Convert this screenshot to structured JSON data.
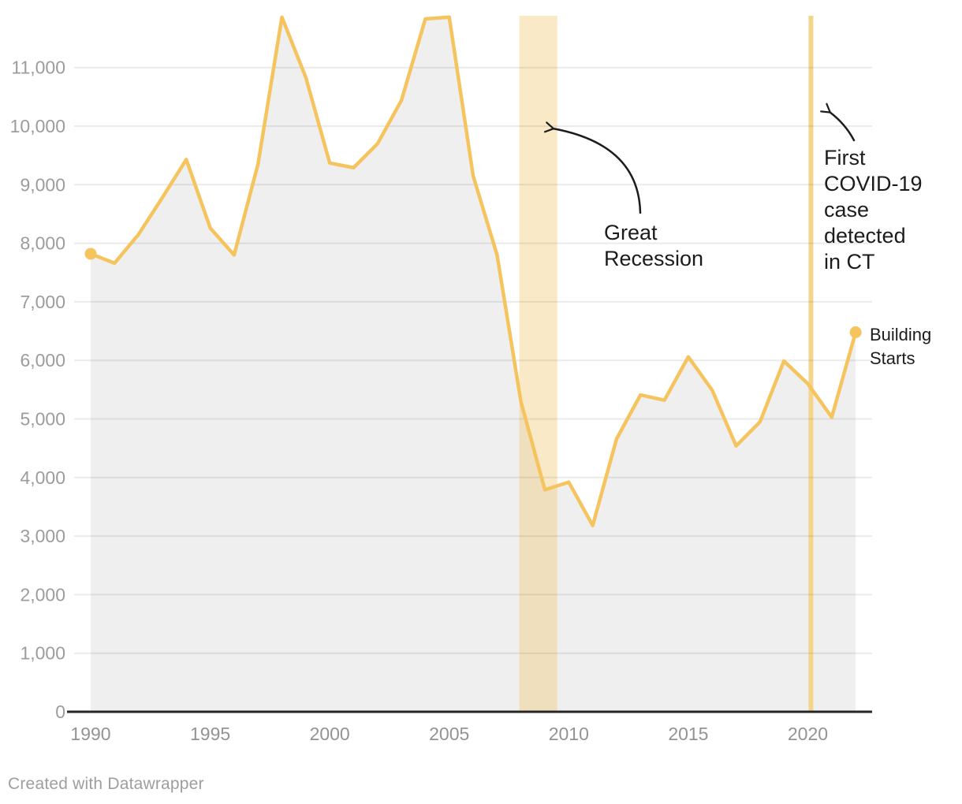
{
  "chart_data": {
    "type": "area",
    "title": "",
    "xlabel": "",
    "ylabel": "",
    "series_name": "Building Starts",
    "x": [
      1990,
      1991,
      1992,
      1993,
      1994,
      1995,
      1996,
      1997,
      1998,
      1999,
      2000,
      2001,
      2002,
      2003,
      2004,
      2005,
      2006,
      2007,
      2008,
      2009,
      2010,
      2011,
      2012,
      2013,
      2014,
      2015,
      2016,
      2017,
      2018,
      2019,
      2020,
      2021,
      2022
    ],
    "values": [
      7820,
      7660,
      8150,
      8780,
      9430,
      8260,
      7800,
      9350,
      11860,
      10830,
      9370,
      9290,
      9700,
      10440,
      11830,
      11860,
      9150,
      7800,
      5290,
      3790,
      3920,
      3180,
      4660,
      5410,
      5320,
      6060,
      5490,
      4540,
      4950,
      5990,
      5600,
      5030,
      6480
    ],
    "xlim": [
      1990,
      2022
    ],
    "ylim": [
      0,
      11884
    ],
    "grid": "horizontal",
    "legend_position": "none",
    "x_ticks": [
      1990,
      1995,
      2000,
      2005,
      2010,
      2015,
      2020
    ],
    "y_ticks": [
      0,
      1000,
      2000,
      3000,
      4000,
      5000,
      6000,
      7000,
      8000,
      9000,
      10000,
      11000
    ],
    "y_tick_labels": [
      "0",
      "1,000",
      "2,000",
      "3,000",
      "4,000",
      "5,000",
      "6,000",
      "7,000",
      "8,000",
      "9,000",
      "10,000",
      "11,000"
    ],
    "annotations": {
      "range_highlight": {
        "label": "Great Recession",
        "label_lines": [
          "Great",
          "Recession"
        ],
        "x_from": 2007.93,
        "x_to": 2009.52
      },
      "event_line": {
        "label": "First COVID-19 case detected in CT",
        "label_lines": [
          "First",
          "COVID-19",
          "case",
          "detected",
          "in CT"
        ],
        "x": 2020.13
      },
      "series_label_lines": [
        "Building",
        "Starts"
      ]
    }
  },
  "colors": {
    "line": "#f5c45f",
    "dot": "#f5c45f",
    "area_fill": "#efefef",
    "range_band": "rgba(242,200,112,0.4)",
    "event_line": "#f5d48c",
    "grid": "rgba(30,30,30,0.09)",
    "baseline": "#262626",
    "annotation_text": "#1c1c1c"
  },
  "footer": {
    "credit": "Created with Datawrapper"
  }
}
